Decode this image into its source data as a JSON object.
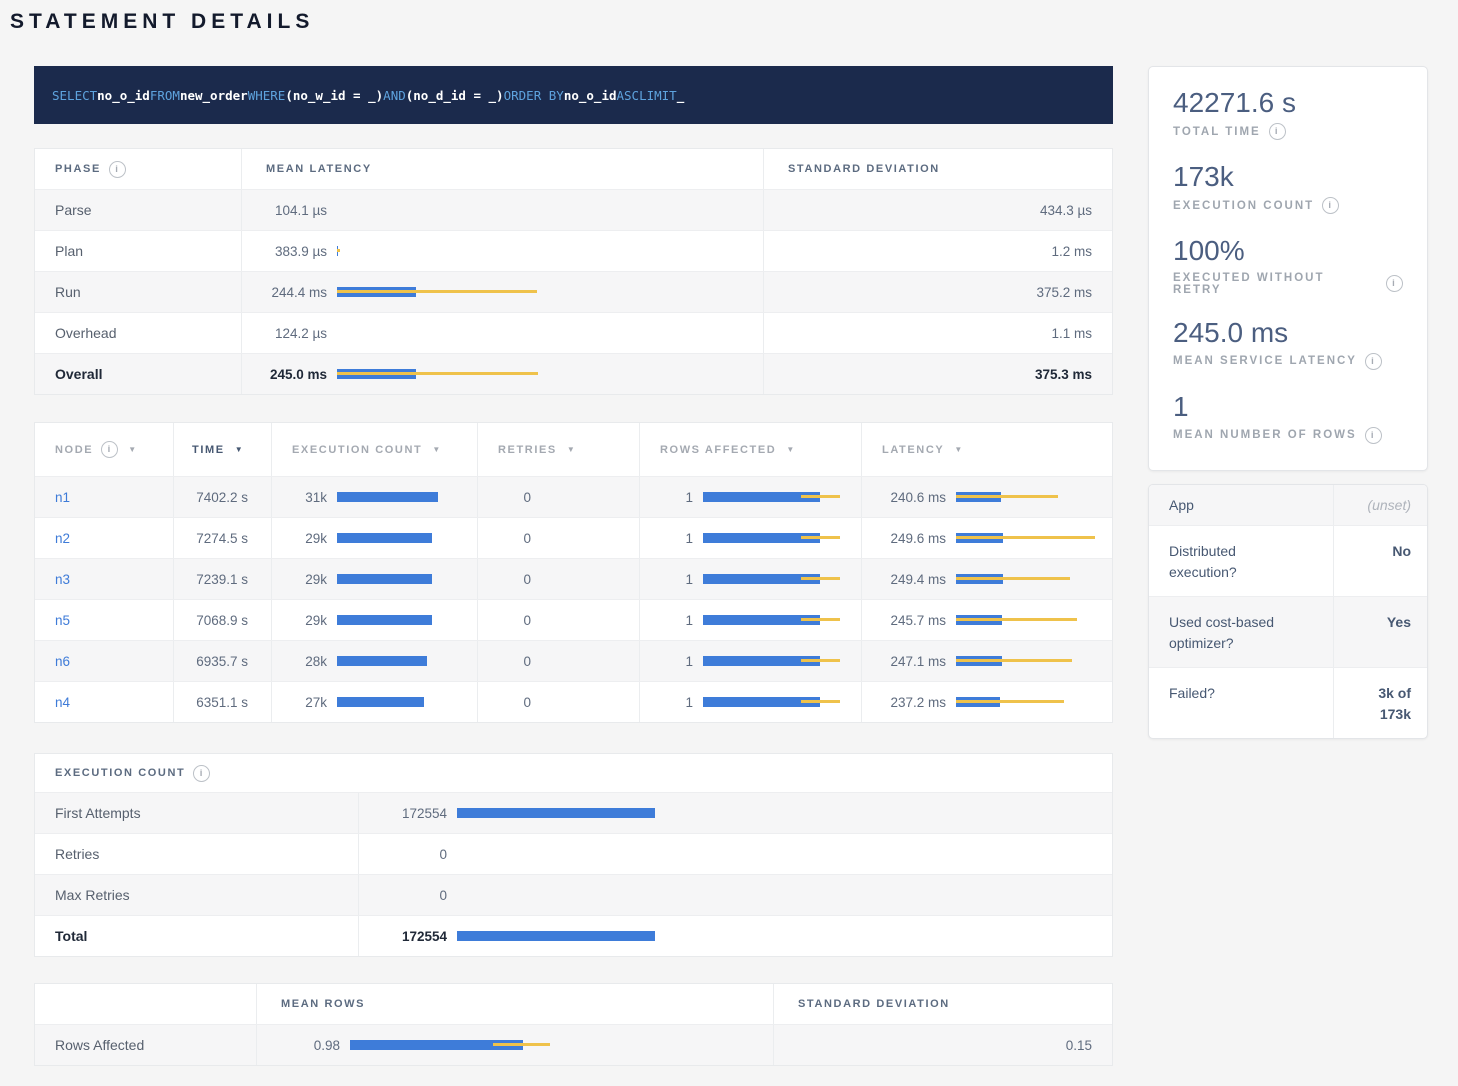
{
  "page": {
    "title": "STATEMENT DETAILS"
  },
  "icons": {
    "info_glyph": "i",
    "sort_glyph": "▼"
  },
  "colors": {
    "bar_blue": "#3E7CD9",
    "bar_yellow": "#EFC24B",
    "sql_bg": "#1B2A4C",
    "sql_keyword_color": "#5EA3DE",
    "link_blue": "#3E7BD8"
  },
  "sql": {
    "tokens": [
      {
        "text": "SELECT",
        "type": "keyword"
      },
      {
        "text": "no_o_id",
        "type": "identifier"
      },
      {
        "text": "FROM",
        "type": "keyword"
      },
      {
        "text": "new_order",
        "type": "identifier"
      },
      {
        "text": "WHERE",
        "type": "keyword"
      },
      {
        "text": "(no_w_id = _)",
        "type": "identifier"
      },
      {
        "text": "AND",
        "type": "keyword"
      },
      {
        "text": "(no_d_id = _)",
        "type": "identifier"
      },
      {
        "text": "ORDER BY",
        "type": "keyword"
      },
      {
        "text": "no_o_id",
        "type": "identifier"
      },
      {
        "text": "ASC",
        "type": "keyword"
      },
      {
        "text": "LIMIT",
        "type": "keyword"
      },
      {
        "text": "_",
        "type": "identifier"
      }
    ]
  },
  "phase_table": {
    "headers": {
      "phase": "PHASE",
      "mean": "MEAN LATENCY",
      "std": "STANDARD DEVIATION"
    },
    "rows": [
      {
        "phase": "Parse",
        "mean": "104.1 µs",
        "std": "434.3 µs",
        "bar": null,
        "bold": false
      },
      {
        "phase": "Plan",
        "mean": "383.9 µs",
        "std": "1.2 ms",
        "bar": {
          "blue": 1,
          "yellow": [
            0,
            3
          ]
        },
        "bold": false
      },
      {
        "phase": "Run",
        "mean": "244.4 ms",
        "std": "375.2 ms",
        "bar": {
          "blue": 79,
          "yellow": [
            0,
            200
          ]
        },
        "bold": false
      },
      {
        "phase": "Overhead",
        "mean": "124.2 µs",
        "std": "1.1 ms",
        "bar": null,
        "bold": false
      },
      {
        "phase": "Overall",
        "mean": "245.0 ms",
        "std": "375.3 ms",
        "bar": {
          "blue": 79,
          "yellow": [
            0,
            201
          ]
        },
        "bold": true
      }
    ]
  },
  "node_table": {
    "headers": [
      {
        "label": "NODE",
        "info": true,
        "sort": true,
        "active": false
      },
      {
        "label": "TIME",
        "info": false,
        "sort": true,
        "active": true
      },
      {
        "label": "EXECUTION COUNT",
        "info": false,
        "sort": true,
        "active": false
      },
      {
        "label": "RETRIES",
        "info": false,
        "sort": true,
        "active": false
      },
      {
        "label": "ROWS AFFECTED",
        "info": false,
        "sort": true,
        "active": false
      },
      {
        "label": "LATENCY",
        "info": false,
        "sort": true,
        "active": false
      }
    ],
    "rows": [
      {
        "node": "n1",
        "time": "7402.2 s",
        "exec": "31k",
        "exec_bar": {
          "blue": 101,
          "yellow": null
        },
        "retries": "0",
        "rows": "1",
        "rows_bar": {
          "blue": 117,
          "yellow": [
            98,
            137
          ]
        },
        "latency": "240.6 ms",
        "latency_bar": {
          "blue": 45,
          "yellow": [
            0,
            102
          ]
        }
      },
      {
        "node": "n2",
        "time": "7274.5 s",
        "exec": "29k",
        "exec_bar": {
          "blue": 95,
          "yellow": null
        },
        "retries": "0",
        "rows": "1",
        "rows_bar": {
          "blue": 117,
          "yellow": [
            98,
            137
          ]
        },
        "latency": "249.6 ms",
        "latency_bar": {
          "blue": 47,
          "yellow": [
            0,
            139
          ]
        }
      },
      {
        "node": "n3",
        "time": "7239.1 s",
        "exec": "29k",
        "exec_bar": {
          "blue": 95,
          "yellow": null
        },
        "retries": "0",
        "rows": "1",
        "rows_bar": {
          "blue": 117,
          "yellow": [
            98,
            137
          ]
        },
        "latency": "249.4 ms",
        "latency_bar": {
          "blue": 47,
          "yellow": [
            0,
            114
          ]
        }
      },
      {
        "node": "n5",
        "time": "7068.9 s",
        "exec": "29k",
        "exec_bar": {
          "blue": 95,
          "yellow": null
        },
        "retries": "0",
        "rows": "1",
        "rows_bar": {
          "blue": 117,
          "yellow": [
            98,
            137
          ]
        },
        "latency": "245.7 ms",
        "latency_bar": {
          "blue": 46,
          "yellow": [
            0,
            121
          ]
        }
      },
      {
        "node": "n6",
        "time": "6935.7 s",
        "exec": "28k",
        "exec_bar": {
          "blue": 90,
          "yellow": null
        },
        "retries": "0",
        "rows": "1",
        "rows_bar": {
          "blue": 117,
          "yellow": [
            98,
            137
          ]
        },
        "latency": "247.1 ms",
        "latency_bar": {
          "blue": 46,
          "yellow": [
            0,
            116
          ]
        }
      },
      {
        "node": "n4",
        "time": "6351.1 s",
        "exec": "27k",
        "exec_bar": {
          "blue": 87,
          "yellow": null
        },
        "retries": "0",
        "rows": "1",
        "rows_bar": {
          "blue": 117,
          "yellow": [
            98,
            137
          ]
        },
        "latency": "237.2 ms",
        "latency_bar": {
          "blue": 44,
          "yellow": [
            0,
            108
          ]
        }
      }
    ]
  },
  "exec_table": {
    "title": "EXECUTION COUNT",
    "rows": [
      {
        "label": "First Attempts",
        "value": "172554",
        "bar": {
          "blue": 198,
          "yellow": null
        },
        "bold": false
      },
      {
        "label": "Retries",
        "value": "0",
        "bar": null,
        "bold": false
      },
      {
        "label": "Max Retries",
        "value": "0",
        "bar": null,
        "bold": false
      },
      {
        "label": "Total",
        "value": "172554",
        "bar": {
          "blue": 198,
          "yellow": null
        },
        "bold": true
      }
    ]
  },
  "rows_table": {
    "headers": {
      "blank": "",
      "mean": "MEAN ROWS",
      "std": "STANDARD DEVIATION"
    },
    "rows": [
      {
        "label": "Rows Affected",
        "mean": "0.98",
        "std": "0.15",
        "bar": {
          "blue": 173,
          "yellow": [
            143,
            200
          ]
        }
      }
    ]
  },
  "summary_card": {
    "stats": [
      {
        "value": "42271.6 s",
        "label": "TOTAL TIME",
        "info": true
      },
      {
        "value": "173k",
        "label": "EXECUTION COUNT",
        "info": true
      },
      {
        "value": "100%",
        "label": "EXECUTED WITHOUT RETRY",
        "info": true
      },
      {
        "value": "245.0 ms",
        "label": "MEAN SERVICE LATENCY",
        "info": true
      },
      {
        "value": "1",
        "label": "MEAN NUMBER OF ROWS",
        "info": true
      }
    ]
  },
  "details_card": {
    "rows": [
      {
        "label": "App",
        "value": "(unset)",
        "muted": true
      },
      {
        "label": "Distributed execution?",
        "value": "No",
        "muted": false
      },
      {
        "label": "Used cost-based optimizer?",
        "value": "Yes",
        "muted": false
      },
      {
        "label": "Failed?",
        "value": "3k of 173k",
        "muted": false
      }
    ]
  }
}
